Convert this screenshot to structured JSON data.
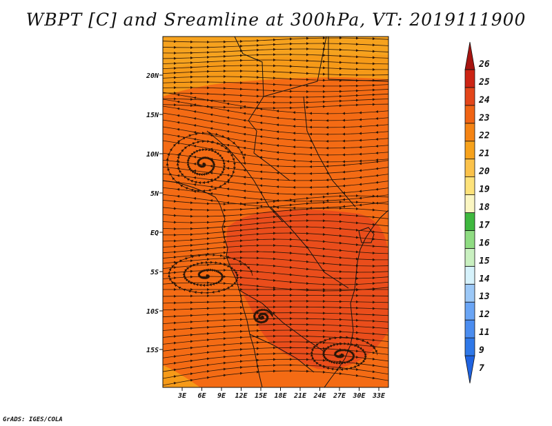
{
  "title": "WBPT [C] and Sreamline at 300hPa, VT: 2019111900",
  "footer": "GrADS: IGES/COLA",
  "map": {
    "lat_ticks": [
      "20N",
      "15N",
      "10N",
      "5N",
      "EQ",
      "5S",
      "10S",
      "15S"
    ],
    "lon_ticks": [
      "3E",
      "6E",
      "9E",
      "12E",
      "15E",
      "18E",
      "21E",
      "24E",
      "27E",
      "30E",
      "33E"
    ],
    "colors": {
      "base_fill": "#f46b14",
      "north_band": "#f69a18",
      "core_fill": "#e8481c",
      "streamline": "#2a1608",
      "coastline": "#111111"
    }
  },
  "colorbar": {
    "labels": [
      "7",
      "9",
      "11",
      "12",
      "13",
      "14",
      "15",
      "16",
      "17",
      "18",
      "19",
      "20",
      "21",
      "22",
      "23",
      "24",
      "25",
      "26"
    ],
    "colors": [
      "#1f63e0",
      "#2f78e8",
      "#4b8df0",
      "#6aa5f5",
      "#9cc8f7",
      "#d6f2fb",
      "#c9f0c0",
      "#8fdc82",
      "#3fb83f",
      "#fbf6c2",
      "#fde27a",
      "#fbc24a",
      "#f7a21c",
      "#f58414",
      "#f06414",
      "#e3461a",
      "#cc2414",
      "#a61410"
    ]
  }
}
